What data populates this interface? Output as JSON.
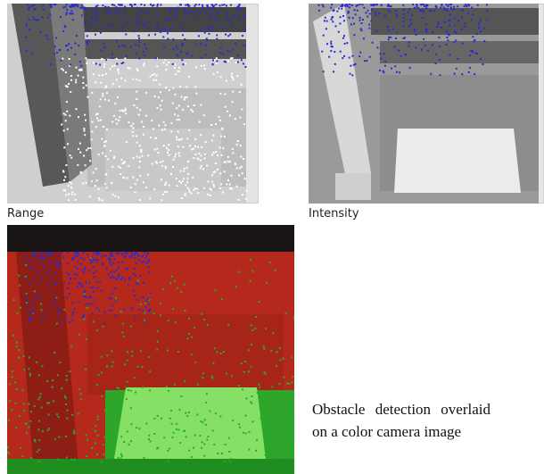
{
  "panels": [
    {
      "label": "Range"
    },
    {
      "label": "Intensity"
    }
  ],
  "caption": "Obstacle detection overlaid on a color camera image"
}
